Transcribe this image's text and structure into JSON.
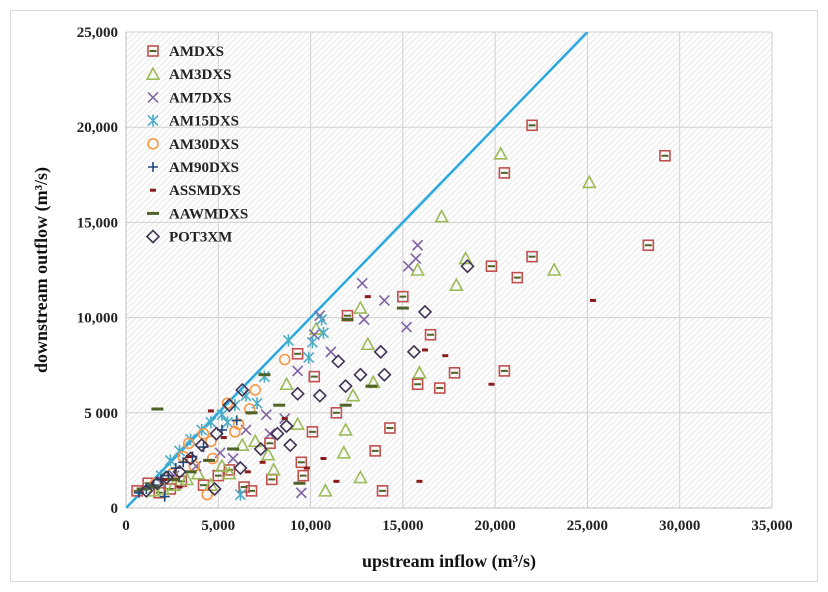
{
  "chart_data": {
    "type": "scatter",
    "title": "",
    "xlabel": "upstream inflow (m³/s)",
    "ylabel": "downstream outflow (m³/s)",
    "xlim": [
      0,
      35000
    ],
    "ylim": [
      0,
      25000
    ],
    "x_ticks": [
      0,
      5000,
      10000,
      15000,
      20000,
      25000,
      30000,
      35000
    ],
    "x_tick_labels": [
      "0",
      "5,000",
      "10,000",
      "15,000",
      "20,000",
      "25,000",
      "30,000",
      "35,000"
    ],
    "y_ticks": [
      0,
      5000,
      10000,
      15000,
      20000,
      25000
    ],
    "y_tick_labels": [
      "0",
      "5 000",
      "10,000",
      "15,000",
      "20,000",
      "25,000"
    ],
    "grid": true,
    "legend_position": "top-left",
    "reference_line": {
      "name": "1:1 line",
      "color": "#29a9e0",
      "x": [
        0,
        25000
      ],
      "y": [
        0,
        25000
      ]
    },
    "series": [
      {
        "name": "AMDXS",
        "marker": "square",
        "color": "#c0504d",
        "x": [
          29200,
          22000,
          20500,
          28300,
          22000,
          21200,
          19800,
          20500,
          15000,
          15800,
          16500,
          17800,
          17000,
          12000,
          14300,
          13500,
          13900,
          11400,
          10200,
          10100,
          9300,
          9500,
          9600,
          7800,
          7900,
          6800,
          6400,
          5600,
          5000,
          4200,
          3000,
          2400,
          1800,
          1200,
          600
        ],
        "y": [
          18500,
          20100,
          17600,
          13800,
          13200,
          12100,
          12700,
          7200,
          11100,
          6500,
          9100,
          7100,
          6300,
          10100,
          4200,
          3000,
          900,
          5000,
          6900,
          4000,
          8100,
          2400,
          1700,
          3400,
          1500,
          900,
          1100,
          2000,
          1700,
          1200,
          1400,
          1000,
          800,
          1300,
          900
        ]
      },
      {
        "name": "AM3DXS",
        "marker": "triangle",
        "color": "#9bbb59",
        "x": [
          20300,
          25100,
          17100,
          18400,
          17900,
          23200,
          15800,
          15900,
          12700,
          12300,
          13100,
          13400,
          11900,
          11800,
          12700,
          10800,
          10300,
          8700,
          9300,
          8000,
          7700,
          7000,
          6300,
          5600,
          5200,
          4600,
          3900,
          3300,
          2600,
          2000,
          1500
        ],
        "y": [
          18600,
          17100,
          15300,
          13100,
          11700,
          12500,
          12500,
          7100,
          10500,
          5900,
          8600,
          6600,
          4100,
          2900,
          1600,
          900,
          9400,
          6500,
          4400,
          2000,
          2800,
          3500,
          3300,
          1800,
          2200,
          1200,
          1800,
          1500,
          1200,
          1000,
          900
        ]
      },
      {
        "name": "AM7DXS",
        "marker": "x",
        "color": "#8064a2",
        "x": [
          15800,
          15700,
          15300,
          15200,
          14000,
          12800,
          12900,
          10500,
          11100,
          10200,
          9500,
          9300,
          8600,
          7600,
          7800,
          6500,
          5800,
          5100,
          3800,
          2600,
          1900
        ],
        "y": [
          13800,
          13100,
          12700,
          9500,
          10900,
          11800,
          9900,
          10100,
          8200,
          9100,
          800,
          7200,
          4700,
          4900,
          3900,
          4100,
          2600,
          2900,
          2200,
          1700,
          1300
        ]
      },
      {
        "name": "AM15DXS",
        "marker": "asterisk",
        "color": "#4bacc6",
        "x": [
          10600,
          10700,
          10100,
          9900,
          8800,
          7500,
          6500,
          5900,
          5200,
          4600,
          4100,
          3500,
          2900,
          2400,
          1900,
          6200,
          5500,
          7100
        ],
        "y": [
          9900,
          9200,
          8700,
          7900,
          8800,
          6900,
          5900,
          5400,
          4900,
          4500,
          4100,
          3600,
          3000,
          2500,
          1700,
          700,
          4500,
          5500
        ]
      },
      {
        "name": "AM30DXS",
        "marker": "circle",
        "color": "#f79646",
        "x": [
          8600,
          7000,
          6700,
          6100,
          5500,
          4600,
          4700,
          4200,
          3700,
          3400,
          2500,
          1600,
          4400,
          5900,
          3100
        ],
        "y": [
          7800,
          6200,
          5200,
          4400,
          5500,
          3500,
          2600,
          3900,
          2200,
          3400,
          1800,
          1300,
          700,
          4000,
          2700
        ]
      },
      {
        "name": "AM90DXS",
        "marker": "plus",
        "color": "#1f497d",
        "x": [
          6000,
          5200,
          4200,
          3600,
          3100,
          2700,
          2300,
          1900,
          1500,
          1100,
          700,
          2100
        ],
        "y": [
          4600,
          4100,
          3200,
          2700,
          2400,
          2100,
          1700,
          1500,
          1200,
          1000,
          800,
          600
        ]
      },
      {
        "name": "ASSMDXS",
        "marker": "dash",
        "color": "#8b1c1c",
        "x": [
          25300,
          19800,
          17300,
          16200,
          15900,
          13100,
          11400,
          10700,
          9800,
          8600,
          7400,
          6600,
          5300,
          4600,
          3400,
          2900,
          2100
        ],
        "y": [
          10900,
          6500,
          8000,
          8300,
          1400,
          11100,
          1400,
          2600,
          2100,
          4700,
          2400,
          1900,
          3700,
          5100,
          2700,
          1100,
          1500
        ]
      },
      {
        "name": "AAWMDXS",
        "marker": "long-dash",
        "color": "#4f6228",
        "x": [
          1700,
          12000,
          15000,
          13300,
          11900,
          8300,
          7500,
          6800,
          5800,
          4500,
          3500,
          2600,
          1500,
          900,
          9400
        ],
        "y": [
          5200,
          9900,
          10500,
          6400,
          5400,
          5400,
          7000,
          5000,
          3100,
          2500,
          1900,
          1500,
          1100,
          1000,
          1300
        ]
      },
      {
        "name": "POT3XM",
        "marker": "diamond",
        "color": "#403152",
        "x": [
          18500,
          16200,
          15600,
          13800,
          14000,
          12700,
          11900,
          11500,
          10500,
          9300,
          8700,
          8200,
          7300,
          6300,
          5600,
          4900,
          4100,
          3500,
          2900,
          2200,
          1700,
          1100,
          4800,
          6200,
          8900
        ],
        "y": [
          12700,
          10300,
          8200,
          8200,
          7000,
          7000,
          6400,
          7700,
          5900,
          6000,
          4300,
          3900,
          3100,
          6200,
          5400,
          3900,
          3300,
          2600,
          1900,
          1600,
          1300,
          900,
          1000,
          2100,
          3300
        ]
      }
    ]
  }
}
